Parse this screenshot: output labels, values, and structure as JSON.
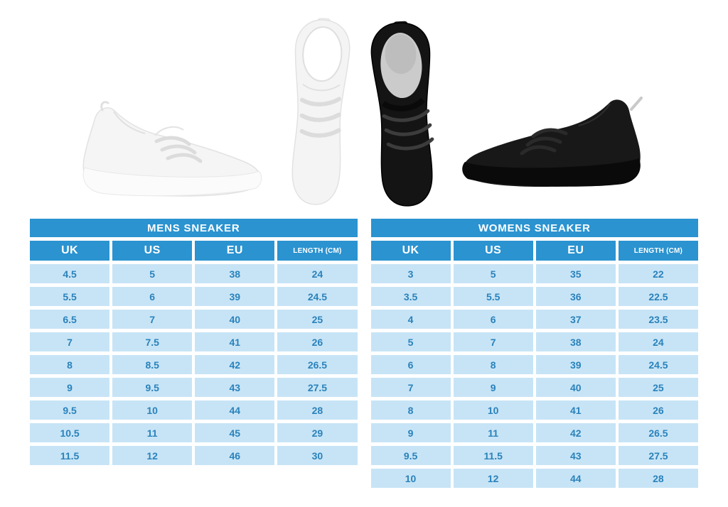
{
  "chart_data": [
    {
      "type": "table",
      "title": "MENS SNEAKER",
      "columns": [
        "UK",
        "US",
        "EU",
        "LENGTH (CM)"
      ],
      "rows": [
        [
          "4.5",
          "5",
          "38",
          "24"
        ],
        [
          "5.5",
          "6",
          "39",
          "24.5"
        ],
        [
          "6.5",
          "7",
          "40",
          "25"
        ],
        [
          "7",
          "7.5",
          "41",
          "26"
        ],
        [
          "8",
          "8.5",
          "42",
          "26.5"
        ],
        [
          "9",
          "9.5",
          "43",
          "27.5"
        ],
        [
          "9.5",
          "10",
          "44",
          "28"
        ],
        [
          "10.5",
          "11",
          "45",
          "29"
        ],
        [
          "11.5",
          "12",
          "46",
          "30"
        ]
      ]
    },
    {
      "type": "table",
      "title": "WOMENS SNEAKER",
      "columns": [
        "UK",
        "US",
        "EU",
        "LENGTH (CM)"
      ],
      "rows": [
        [
          "3",
          "5",
          "35",
          "22"
        ],
        [
          "3.5",
          "5.5",
          "36",
          "22.5"
        ],
        [
          "4",
          "6",
          "37",
          "23.5"
        ],
        [
          "5",
          "7",
          "38",
          "24"
        ],
        [
          "6",
          "8",
          "39",
          "24.5"
        ],
        [
          "7",
          "9",
          "40",
          "25"
        ],
        [
          "8",
          "10",
          "41",
          "26"
        ],
        [
          "9",
          "11",
          "42",
          "26.5"
        ],
        [
          "9.5",
          "11.5",
          "43",
          "27.5"
        ],
        [
          "10",
          "12",
          "44",
          "28"
        ]
      ]
    }
  ],
  "images": {
    "white_sneaker_side": "white sneaker side view",
    "white_sneaker_top": "white sneaker top view",
    "black_sneaker_top": "black sneaker top view",
    "black_sneaker_side": "black sneaker side view"
  },
  "colors": {
    "header_blue": "#2b93d0",
    "row_blue": "#c7e4f6",
    "cell_text_blue": "#2a82bb",
    "header_text": "#ffffff",
    "background": "#ffffff"
  }
}
